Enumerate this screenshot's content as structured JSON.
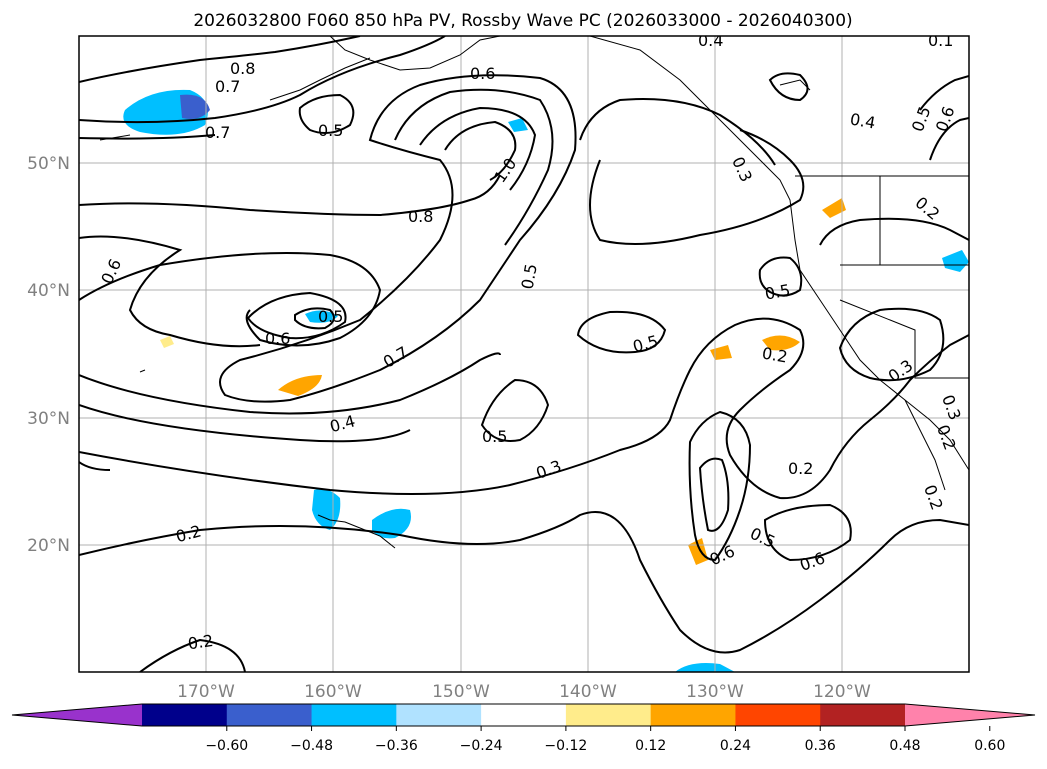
{
  "title": "2026032800 F060 850 hPa PV, Rossby Wave PC (2026033000 - 2026040300)",
  "lon_labels": [
    "170°W",
    "160°W",
    "150°W",
    "140°W",
    "130°W",
    "120°W"
  ],
  "lat_labels": [
    "50°N",
    "40°N",
    "30°N",
    "20°N"
  ],
  "contour_labels": [
    "0.8",
    "0.7",
    "0.7",
    "0.5",
    "0.6",
    "0.4",
    "0.1",
    "1.0",
    "0.8",
    "0.6",
    "0.6",
    "0.5",
    "0.5",
    "0.7",
    "0.4",
    "0.5",
    "0.3",
    "0.2",
    "0.2",
    "0.5",
    "0.5",
    "0.2",
    "0.2",
    "0.6",
    "0.5",
    "0.6",
    "0.3",
    "0.3",
    "0.4",
    "0.5",
    "0.6",
    "0.2",
    "0.3",
    "0.2",
    "0.2"
  ],
  "colorbar": {
    "colors": [
      "#9932cc",
      "#00008b",
      "#3a5fcd",
      "#00bfff",
      "#b0e2ff",
      "#ffffff",
      "#ffec8b",
      "#ffa500",
      "#ff4500",
      "#b22222",
      "#ff82ab"
    ],
    "ticks": [
      "−0.60",
      "−0.48",
      "−0.36",
      "−0.24",
      "−0.12",
      "0.12",
      "0.24",
      "0.36",
      "0.48",
      "0.60"
    ]
  },
  "map_extent": {
    "lon": [
      -180,
      -110
    ],
    "lat": [
      10,
      60
    ]
  }
}
